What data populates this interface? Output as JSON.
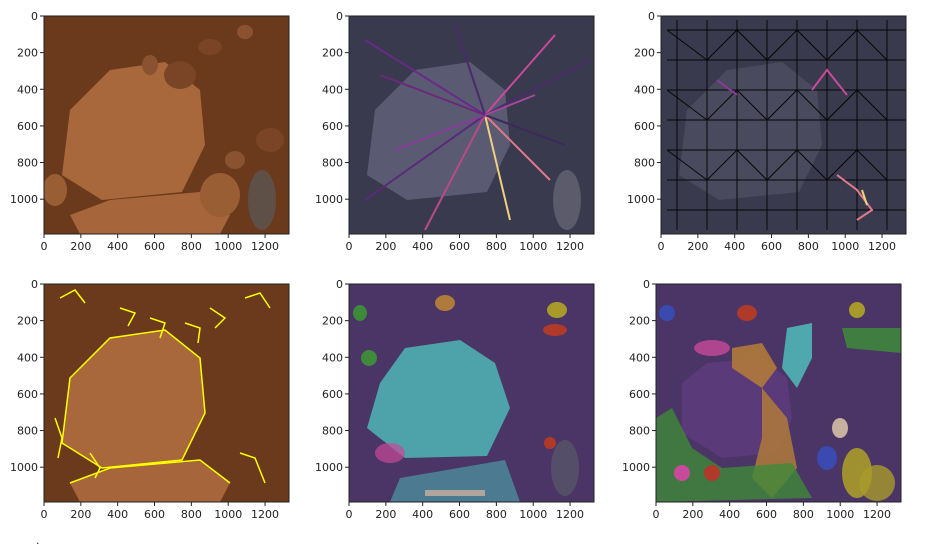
{
  "colors": {
    "mars_dark": "#5b3018",
    "mars_mid": "#8a4a24",
    "mars_light": "#b06a3a",
    "rock_face": "#a8683c",
    "overlay_dark": "#3a3a4e",
    "overlay_purple": "#4a3566",
    "edge_yellow": "#ffff00",
    "seg_cyan": "#4fb5b5",
    "seg_green": "#3e8a3a",
    "seg_orange": "#b07a3a",
    "seg_pink": "#c84a9a",
    "seg_blue": "#3a4ab0",
    "seg_red": "#b03a2a",
    "seg_olive": "#a89a2a",
    "seg_lavender": "#8a6ab0"
  },
  "axes": {
    "x_ticks": [
      "0",
      "200",
      "400",
      "600",
      "800",
      "1000",
      "1200"
    ],
    "y_ticks": [
      "0",
      "200",
      "400",
      "600",
      "800",
      "1000"
    ]
  },
  "panels": [
    {
      "id": "p1",
      "kind": "raw-image"
    },
    {
      "id": "p2",
      "kind": "star-graph-overlay"
    },
    {
      "id": "p3",
      "kind": "mesh-graph-overlay"
    },
    {
      "id": "p4",
      "kind": "edge-detection-overlay"
    },
    {
      "id": "p5",
      "kind": "segmentation-overlay"
    },
    {
      "id": "p6",
      "kind": "segmentation-overlay-fine"
    }
  ],
  "caption": "."
}
